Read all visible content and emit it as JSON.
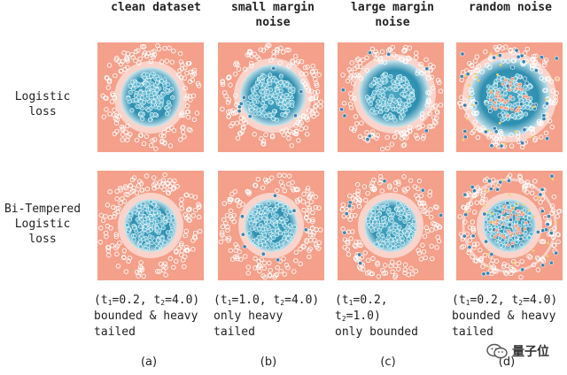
{
  "columns": [
    {
      "title": "clean dataset"
    },
    {
      "title": "small margin\nnoise"
    },
    {
      "title": "large margin\nnoise"
    },
    {
      "title": "random noise"
    }
  ],
  "rows": [
    {
      "label": "Logistic\nloss"
    },
    {
      "label": "Bi-Tempered\nLogistic\nloss"
    }
  ],
  "captions": [
    {
      "t1": "0.2",
      "t2": "4.0",
      "desc1": "bounded & heavy",
      "desc2": "tailed",
      "letter": "(a)"
    },
    {
      "t1": "1.0",
      "t2": "4.0",
      "desc1": "only heavy",
      "desc2": "tailed",
      "letter": "(b)"
    },
    {
      "t1": "0.2",
      "t2": "1.0",
      "desc1": "only bounded",
      "desc2": "",
      "letter": "(c)"
    },
    {
      "t1": "0.2",
      "t2": "4.0",
      "desc1": "bounded & heavy",
      "desc2": "tailed",
      "letter": "(d)"
    }
  ],
  "watermark": {
    "text": "量子位"
  },
  "colors": {
    "background_class": "#f4a08a",
    "inner_class": "#2e8fb0",
    "ring_points": "#ffffff",
    "boundary_glow": "#ffffff"
  }
}
